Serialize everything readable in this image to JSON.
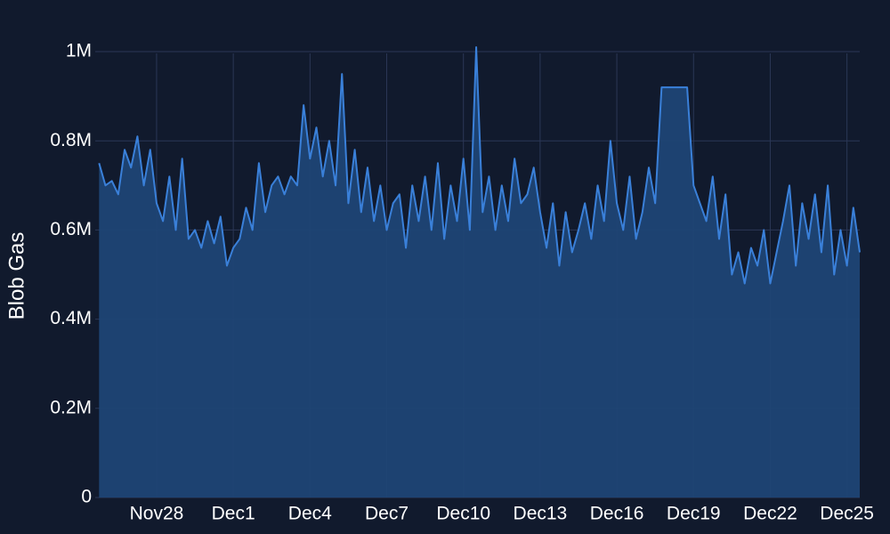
{
  "chart_data": {
    "type": "area",
    "y_label": "Blob Gas",
    "color": "#3a80d9",
    "fill_color": "#1f4475",
    "grid": true,
    "xlim": [
      0.6,
      30.5
    ],
    "ylim": [
      0,
      1060000
    ],
    "xticks": [
      {
        "value": 3,
        "label": "Nov28"
      },
      {
        "value": 6,
        "label": "Dec1"
      },
      {
        "value": 9,
        "label": "Dec4"
      },
      {
        "value": 12,
        "label": "Dec7"
      },
      {
        "value": 15,
        "label": "Dec10"
      },
      {
        "value": 18,
        "label": "Dec13"
      },
      {
        "value": 21,
        "label": "Dec16"
      },
      {
        "value": 24,
        "label": "Dec19"
      },
      {
        "value": 27,
        "label": "Dec22"
      },
      {
        "value": 30,
        "label": "Dec25"
      }
    ],
    "yticks": [
      0,
      {
        "value": 200000,
        "label": "0.2M"
      },
      {
        "value": 400000,
        "label": "0.4M"
      },
      {
        "value": 600000,
        "label": "0.6M"
      },
      {
        "value": 800000,
        "label": "0.8M"
      },
      {
        "value": 1000000,
        "label": "1M"
      }
    ],
    "x": [
      0.75,
      1,
      1.25,
      1.5,
      1.75,
      2,
      2.25,
      2.5,
      2.75,
      3,
      3.25,
      3.5,
      3.75,
      4,
      4.25,
      4.5,
      4.75,
      5,
      5.25,
      5.5,
      5.75,
      6,
      6.25,
      6.5,
      6.75,
      7,
      7.25,
      7.5,
      7.75,
      8,
      8.25,
      8.5,
      8.75,
      9,
      9.25,
      9.5,
      9.75,
      10,
      10.25,
      10.5,
      10.75,
      11,
      11.25,
      11.5,
      11.75,
      12,
      12.25,
      12.5,
      12.75,
      13,
      13.25,
      13.5,
      13.75,
      14,
      14.25,
      14.5,
      14.75,
      15,
      15.25,
      15.5,
      15.75,
      16,
      16.25,
      16.5,
      16.75,
      17,
      17.25,
      17.5,
      17.75,
      18,
      18.25,
      18.5,
      18.75,
      19,
      19.25,
      19.5,
      19.75,
      20,
      20.25,
      20.5,
      20.75,
      21,
      21.25,
      21.5,
      21.75,
      22,
      22.25,
      22.5,
      22.75,
      23,
      23.25,
      23.5,
      23.75,
      24,
      24.25,
      24.5,
      24.75,
      25,
      25.25,
      25.5,
      25.75,
      26,
      26.25,
      26.5,
      26.75,
      27,
      27.25,
      27.5,
      27.75,
      28,
      28.25,
      28.5,
      28.75,
      29,
      29.25,
      29.5,
      29.75,
      30,
      30.25,
      30.5
    ],
    "values": [
      750000,
      700000,
      710000,
      680000,
      780000,
      740000,
      810000,
      700000,
      780000,
      660000,
      620000,
      720000,
      600000,
      760000,
      580000,
      600000,
      560000,
      620000,
      570000,
      630000,
      520000,
      560000,
      580000,
      650000,
      600000,
      750000,
      640000,
      700000,
      720000,
      680000,
      720000,
      700000,
      880000,
      760000,
      830000,
      720000,
      800000,
      700000,
      950000,
      660000,
      780000,
      640000,
      740000,
      620000,
      700000,
      600000,
      660000,
      680000,
      560000,
      700000,
      620000,
      720000,
      600000,
      750000,
      580000,
      700000,
      620000,
      760000,
      600000,
      1010000,
      640000,
      720000,
      600000,
      700000,
      620000,
      760000,
      660000,
      680000,
      740000,
      640000,
      560000,
      660000,
      520000,
      640000,
      550000,
      600000,
      660000,
      580000,
      700000,
      620000,
      800000,
      660000,
      600000,
      720000,
      580000,
      640000,
      740000,
      660000,
      920000,
      920000,
      920000,
      920000,
      920000,
      700000,
      660000,
      620000,
      720000,
      580000,
      680000,
      500000,
      550000,
      480000,
      560000,
      520000,
      600000,
      480000,
      550000,
      620000,
      700000,
      520000,
      660000,
      580000,
      680000,
      550000,
      700000,
      500000,
      600000,
      520000,
      650000,
      550000
    ]
  }
}
